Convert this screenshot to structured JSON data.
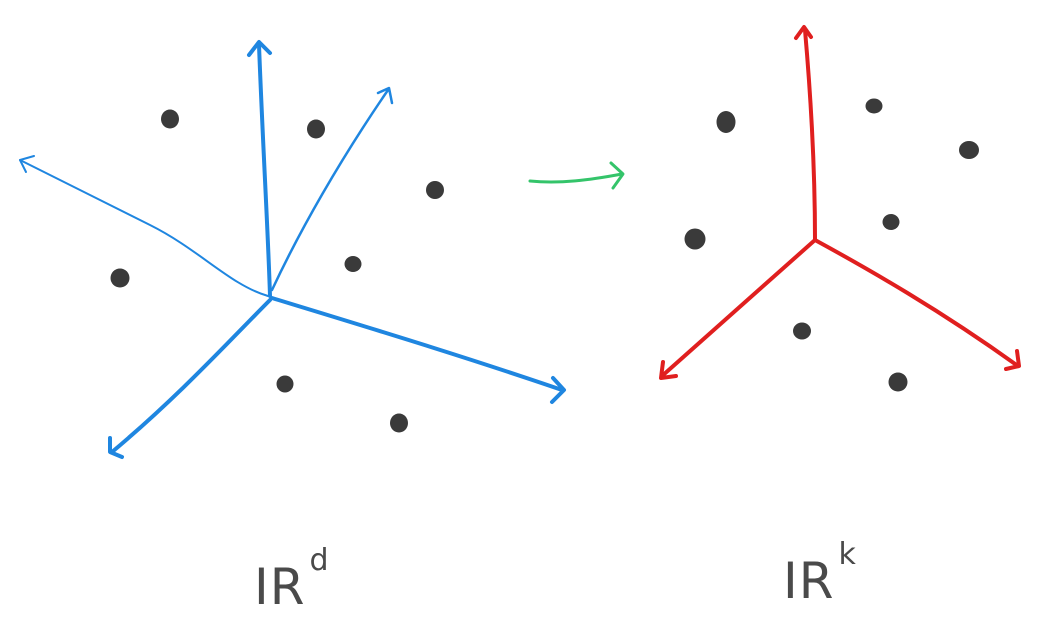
{
  "labels": {
    "source_space": "IR",
    "source_exponent": "d",
    "target_space": "IR",
    "target_exponent": "k"
  },
  "colors": {
    "source_axes": "#1f86e0",
    "target_axes": "#e01f1f",
    "map_arrow": "#34c46a",
    "points": "#3a3a3a"
  }
}
